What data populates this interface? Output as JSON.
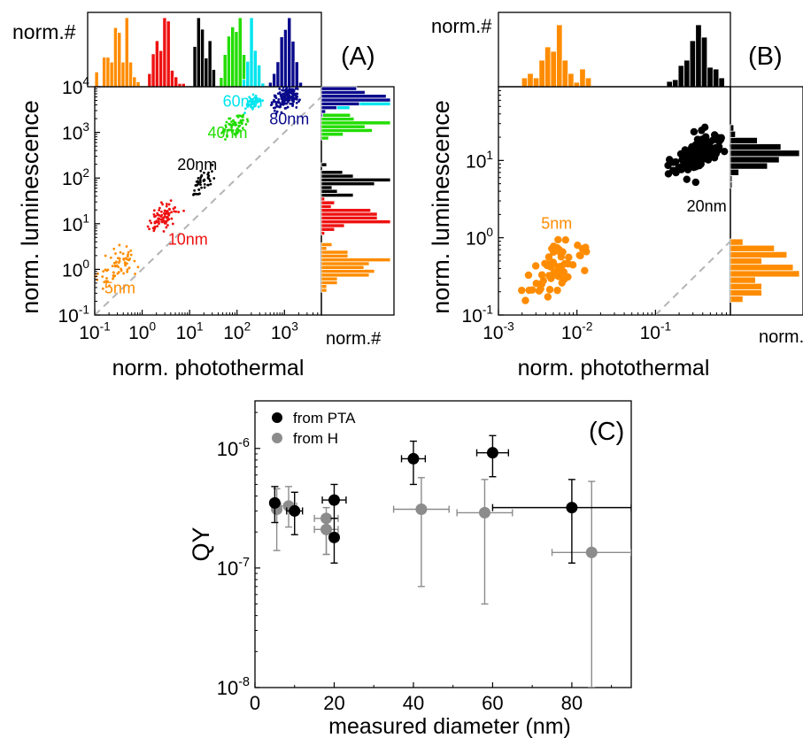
{
  "colors": {
    "orange": "#ff8c00",
    "red": "#ee1111",
    "black": "#000000",
    "green": "#22dd00",
    "cyan": "#00e5ee",
    "navy": "#0a0a8c",
    "gray": "#8c8c8c",
    "dash": "#b4b4b4"
  },
  "chart_data": [
    {
      "panel": "A",
      "type": "scatter",
      "panel_label": "(A)",
      "xlabel": "norm. photothermal",
      "ylabel": "norm. luminescence",
      "xscale": "log",
      "yscale": "log",
      "xlim": [
        0.1,
        6000
      ],
      "ylim": [
        0.1,
        10000
      ],
      "xticks": [
        {
          "e": "-1"
        },
        {
          "e": "0"
        },
        {
          "e": "1"
        },
        {
          "e": "2"
        },
        {
          "e": "3"
        }
      ],
      "yticks": [
        {
          "e": "-1"
        },
        {
          "e": "0"
        },
        {
          "e": "1"
        },
        {
          "e": "2"
        },
        {
          "e": "3"
        },
        {
          "e": "4"
        }
      ],
      "top_hist_label": "norm.#",
      "right_hist_label": "norm.#",
      "guide_line": "dashed y = x",
      "series": [
        {
          "name": "5nm",
          "color": "orange",
          "x_center": 0.3,
          "y_center": 1.2,
          "spread": 0.3,
          "count": 70,
          "label_at": [
            0.16,
            0.3
          ]
        },
        {
          "name": "10nm",
          "color": "red",
          "x_center": 2.8,
          "y_center": 14,
          "spread": 0.22,
          "count": 90,
          "label_at": [
            3.5,
            3.5
          ]
        },
        {
          "name": "20nm",
          "color": "black",
          "x_center": 18,
          "y_center": 75,
          "spread": 0.2,
          "count": 45,
          "label_at": [
            5.5,
            150
          ]
        },
        {
          "name": "40nm",
          "color": "green",
          "x_center": 85,
          "y_center": 1400,
          "spread": 0.2,
          "count": 70,
          "label_at": [
            24,
            750
          ]
        },
        {
          "name": "60nm",
          "color": "cyan",
          "x_center": 210,
          "y_center": 4500,
          "spread": 0.12,
          "count": 45,
          "label_at": [
            50,
            3700
          ]
        },
        {
          "name": "80nm",
          "color": "navy",
          "x_center": 1100,
          "y_center": 6000,
          "spread": 0.2,
          "count": 200,
          "label_at": [
            480,
            1500
          ]
        }
      ]
    },
    {
      "panel": "B",
      "type": "scatter",
      "panel_label": "(B)",
      "xlabel": "norm. photothermal",
      "ylabel": "norm. luminescence",
      "xscale": "log",
      "yscale": "log",
      "xlim": [
        0.001,
        0.9
      ],
      "ylim": [
        0.1,
        90
      ],
      "xticks": [
        {
          "e": "-3"
        },
        {
          "e": "-2"
        },
        {
          "e": "-1"
        }
      ],
      "yticks": [
        {
          "e": "-1"
        },
        {
          "e": "0"
        },
        {
          "e": "1"
        }
      ],
      "top_hist_label": "norm.#",
      "right_hist_label": "norm.#",
      "guide_line": "dashed y = x",
      "series": [
        {
          "name": "5nm",
          "color": "orange",
          "x_center": 0.006,
          "y_center": 0.45,
          "spread": 0.25,
          "count": 60,
          "label_at": [
            0.0035,
            1.3
          ]
        },
        {
          "name": "20nm",
          "color": "black",
          "x_center": 0.35,
          "y_center": 12,
          "spread": 0.2,
          "count": 150,
          "label_at": [
            0.25,
            2.2
          ]
        }
      ]
    },
    {
      "panel": "C",
      "type": "scatter",
      "panel_label": "(C)",
      "xlabel": "measured diameter (nm)",
      "ylabel": "QY",
      "xscale": "linear",
      "yscale": "log",
      "xlim": [
        0,
        95
      ],
      "ylim": [
        1e-08,
        2.5e-06
      ],
      "xticks": [
        "0",
        "20",
        "40",
        "60",
        "80"
      ],
      "yticks": [
        {
          "e": "-8"
        },
        {
          "e": "-7"
        },
        {
          "e": "-6"
        }
      ],
      "legend_position": "top-left",
      "series": [
        {
          "name": "from PTA",
          "color": "black",
          "points": [
            {
              "x": 5,
              "y": 3.5e-07,
              "xerr": 1,
              "ylo": 2.4e-07,
              "yhi": 4.8e-07
            },
            {
              "x": 10,
              "y": 3e-07,
              "xerr": 2,
              "ylo": 1.9e-07,
              "yhi": 4.3e-07
            },
            {
              "x": 20,
              "y": 3.7e-07,
              "xerr": 3,
              "ylo": 2.6e-07,
              "yhi": 5e-07
            },
            {
              "x": 20,
              "y": 1.8e-07,
              "xerr": 1,
              "ylo": 1.1e-07,
              "yhi": 2.6e-07
            },
            {
              "x": 40,
              "y": 8.2e-07,
              "xerr": 3,
              "ylo": 5e-07,
              "yhi": 1.15e-06
            },
            {
              "x": 60,
              "y": 9.2e-07,
              "xerr": 4,
              "ylo": 5.8e-07,
              "yhi": 1.28e-06
            },
            {
              "x": 80,
              "y": 3.2e-07,
              "xerr_lo": 20,
              "xerr_hi": 15,
              "ylo": 1.1e-07,
              "yhi": 5.5e-07
            }
          ]
        },
        {
          "name": "from H",
          "color": "gray",
          "points": [
            {
              "x": 5.5,
              "y": 3.1e-07,
              "xerr": 1,
              "ylo": 1.4e-07,
              "yhi": 4.6e-07
            },
            {
              "x": 8.5,
              "y": 3.3e-07,
              "xerr": 2,
              "ylo": 2.2e-07,
              "yhi": 4.8e-07
            },
            {
              "x": 18,
              "y": 2.6e-07,
              "xerr": 3,
              "ylo": 1.3e-07,
              "yhi": 3.2e-07
            },
            {
              "x": 18,
              "y": 2.1e-07,
              "xerr": 3,
              "ylo": 1.3e-07,
              "yhi": 2.6e-07
            },
            {
              "x": 42,
              "y": 3.1e-07,
              "xerr": 7,
              "ylo": 7e-08,
              "yhi": 5.7e-07
            },
            {
              "x": 58,
              "y": 2.9e-07,
              "xerr": 7,
              "ylo": 5e-08,
              "yhi": 5.5e-07
            },
            {
              "x": 85,
              "y": 1.35e-07,
              "xerr": 10,
              "ylo": 1e-08,
              "yhi": 5.3e-07
            }
          ]
        }
      ]
    }
  ]
}
